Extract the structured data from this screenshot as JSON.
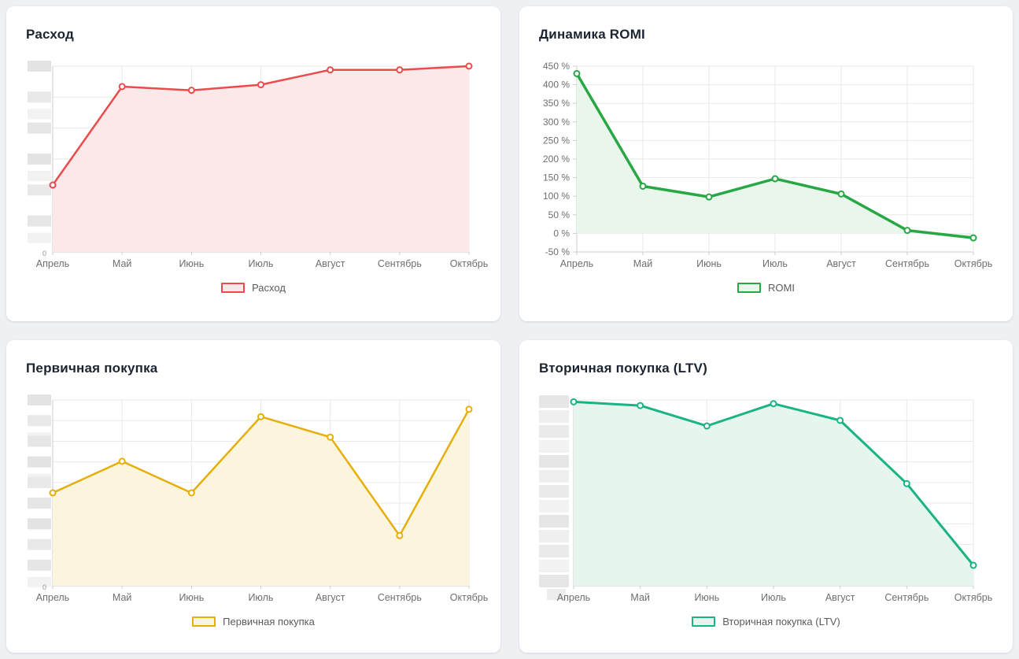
{
  "page": {
    "background_color": "#eef0f3",
    "card_color": "#ffffff"
  },
  "chart_data": [
    {
      "type": "area",
      "title": "Расход",
      "legend": "Расход",
      "legend_position": "bottom",
      "categories": [
        "Апрель",
        "Май",
        "Июнь",
        "Июль",
        "Август",
        "Сентябрь",
        "Октябрь"
      ],
      "values": [
        36,
        89,
        87,
        90,
        98,
        98,
        100
      ],
      "ylim": [
        0,
        100
      ],
      "y_axis_redacted": true,
      "partial_origin_label": "0",
      "line_color": "#e84c4c",
      "fill_color": "#fbe9e9",
      "grid": true
    },
    {
      "type": "area",
      "title": "Динамика ROMI",
      "legend": "ROMI",
      "legend_position": "bottom",
      "categories": [
        "Апрель",
        "Май",
        "Июнь",
        "Июль",
        "Август",
        "Сентябрь",
        "Октябрь"
      ],
      "values": [
        430,
        127,
        98,
        147,
        106,
        8,
        -12
      ],
      "ylim": [
        -50,
        450
      ],
      "y_tick_step": 50,
      "y_tick_labels": [
        "450 %",
        "400 %",
        "350 %",
        "300 %",
        "250 %",
        "200 %",
        "150 %",
        "100 %",
        "50 %",
        "0 %",
        "-50 %"
      ],
      "y_axis_redacted": false,
      "line_color": "#28a745",
      "fill_color": "#e9f6ec",
      "grid": true
    },
    {
      "type": "area",
      "title": "Первичная покупка",
      "legend": "Первичная покупка",
      "legend_position": "bottom",
      "categories": [
        "Апрель",
        "Май",
        "Июнь",
        "Июль",
        "Август",
        "Сентябрь",
        "Октябрь"
      ],
      "values": [
        50,
        67,
        50,
        91,
        80,
        27,
        95
      ],
      "ylim": [
        0,
        100
      ],
      "y_axis_redacted": true,
      "partial_origin_label": "0",
      "line_color": "#e6ae08",
      "fill_color": "#fcf5dd",
      "grid": true
    },
    {
      "type": "area",
      "title": "Вторичная покупка (LTV)",
      "legend": "Вторичная покупка (LTV)",
      "legend_position": "bottom",
      "categories": [
        "Апрель",
        "Май",
        "Июнь",
        "Июль",
        "Август",
        "Сентябрь",
        "Октябрь"
      ],
      "values": [
        99,
        97,
        86,
        98,
        89,
        55,
        11
      ],
      "ylim": [
        0,
        100
      ],
      "y_axis_redacted": true,
      "line_color": "#1ab384",
      "fill_color": "#e6f6ef",
      "grid": true
    }
  ]
}
